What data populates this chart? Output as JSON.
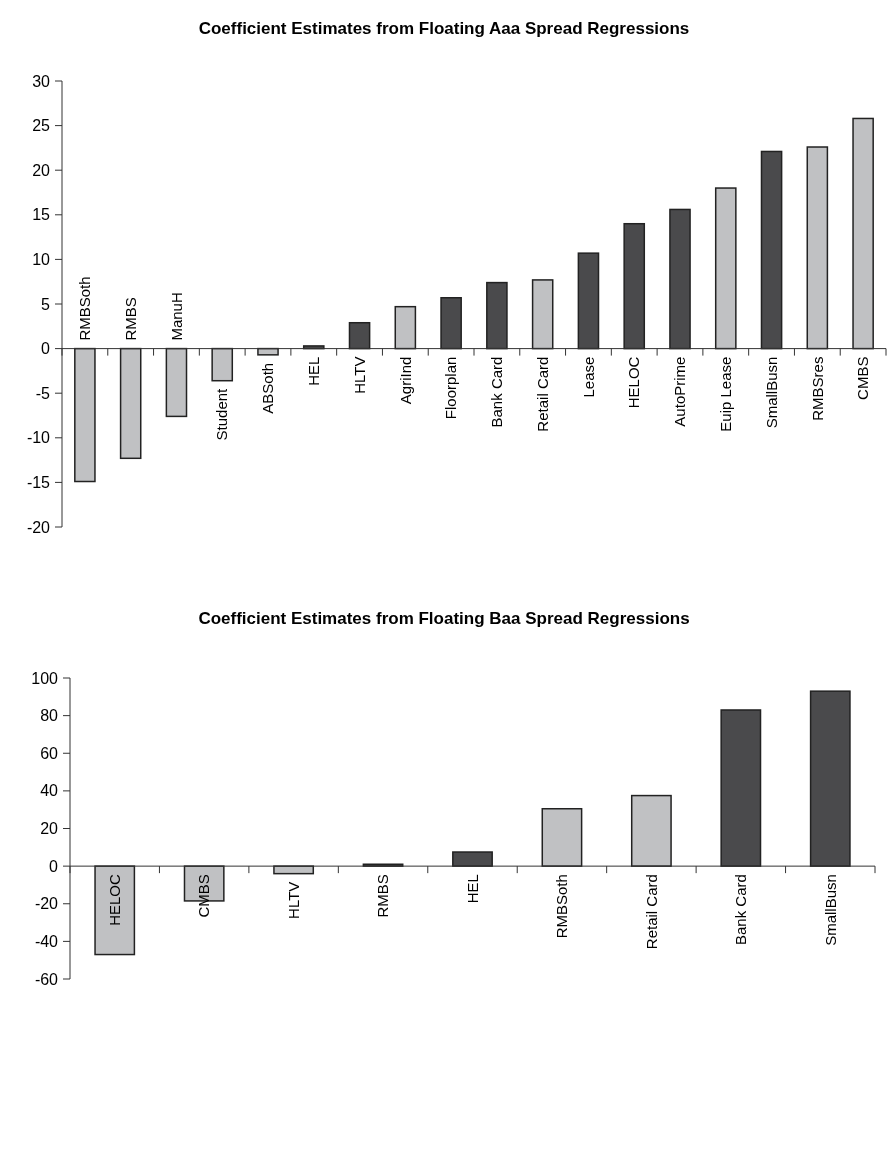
{
  "chart_data": [
    {
      "type": "bar",
      "title": "Coefficient Estimates from Floating Aaa Spread Regressions",
      "categories": [
        "RMBSoth",
        "RMBS",
        "ManuH",
        "Student",
        "ABSoth",
        "HEL",
        "HLTV",
        "AgriInd",
        "Floorplan",
        "Bank Card",
        "Retail Card",
        "Lease",
        "HELOC",
        "AutoPrime",
        "Euip Lease",
        "SmallBusn",
        "RMBSres",
        "CMBS"
      ],
      "values": [
        -14.9,
        -12.3,
        -7.6,
        -3.6,
        -0.7,
        0.3,
        2.9,
        4.7,
        5.7,
        7.4,
        7.7,
        10.7,
        14.0,
        15.6,
        18.0,
        22.1,
        22.6,
        25.8
      ],
      "colors": [
        "#c0c1c3",
        "#c0c1c3",
        "#c0c1c3",
        "#c0c1c3",
        "#c0c1c3",
        "#4a4a4c",
        "#4a4a4c",
        "#c0c1c3",
        "#4a4a4c",
        "#4a4a4c",
        "#c0c1c3",
        "#4a4a4c",
        "#4a4a4c",
        "#4a4a4c",
        "#c0c1c3",
        "#4a4a4c",
        "#c0c1c3",
        "#c0c1c3"
      ],
      "ylim": [
        -20,
        30
      ],
      "yticks": [
        -20,
        -15,
        -10,
        -5,
        0,
        5,
        10,
        15,
        20,
        25,
        30
      ]
    },
    {
      "type": "bar",
      "title": "Coefficient Estimates from Floating Baa Spread Regressions",
      "categories": [
        "HELOC",
        "CMBS",
        "HLTV",
        "RMBS",
        "HEL",
        "RMBSoth",
        "Retail Card",
        "Bank Card",
        "SmallBusn"
      ],
      "values": [
        -47,
        -18.5,
        -4,
        1,
        7.5,
        30.5,
        37.5,
        83,
        93
      ],
      "colors": [
        "#c0c1c3",
        "#c0c1c3",
        "#c0c1c3",
        "#4a4a4c",
        "#4a4a4c",
        "#c0c1c3",
        "#c0c1c3",
        "#4a4a4c",
        "#4a4a4c"
      ],
      "ylim": [
        -60,
        100
      ],
      "yticks": [
        -60,
        -40,
        -20,
        0,
        20,
        40,
        60,
        80,
        100
      ]
    }
  ]
}
